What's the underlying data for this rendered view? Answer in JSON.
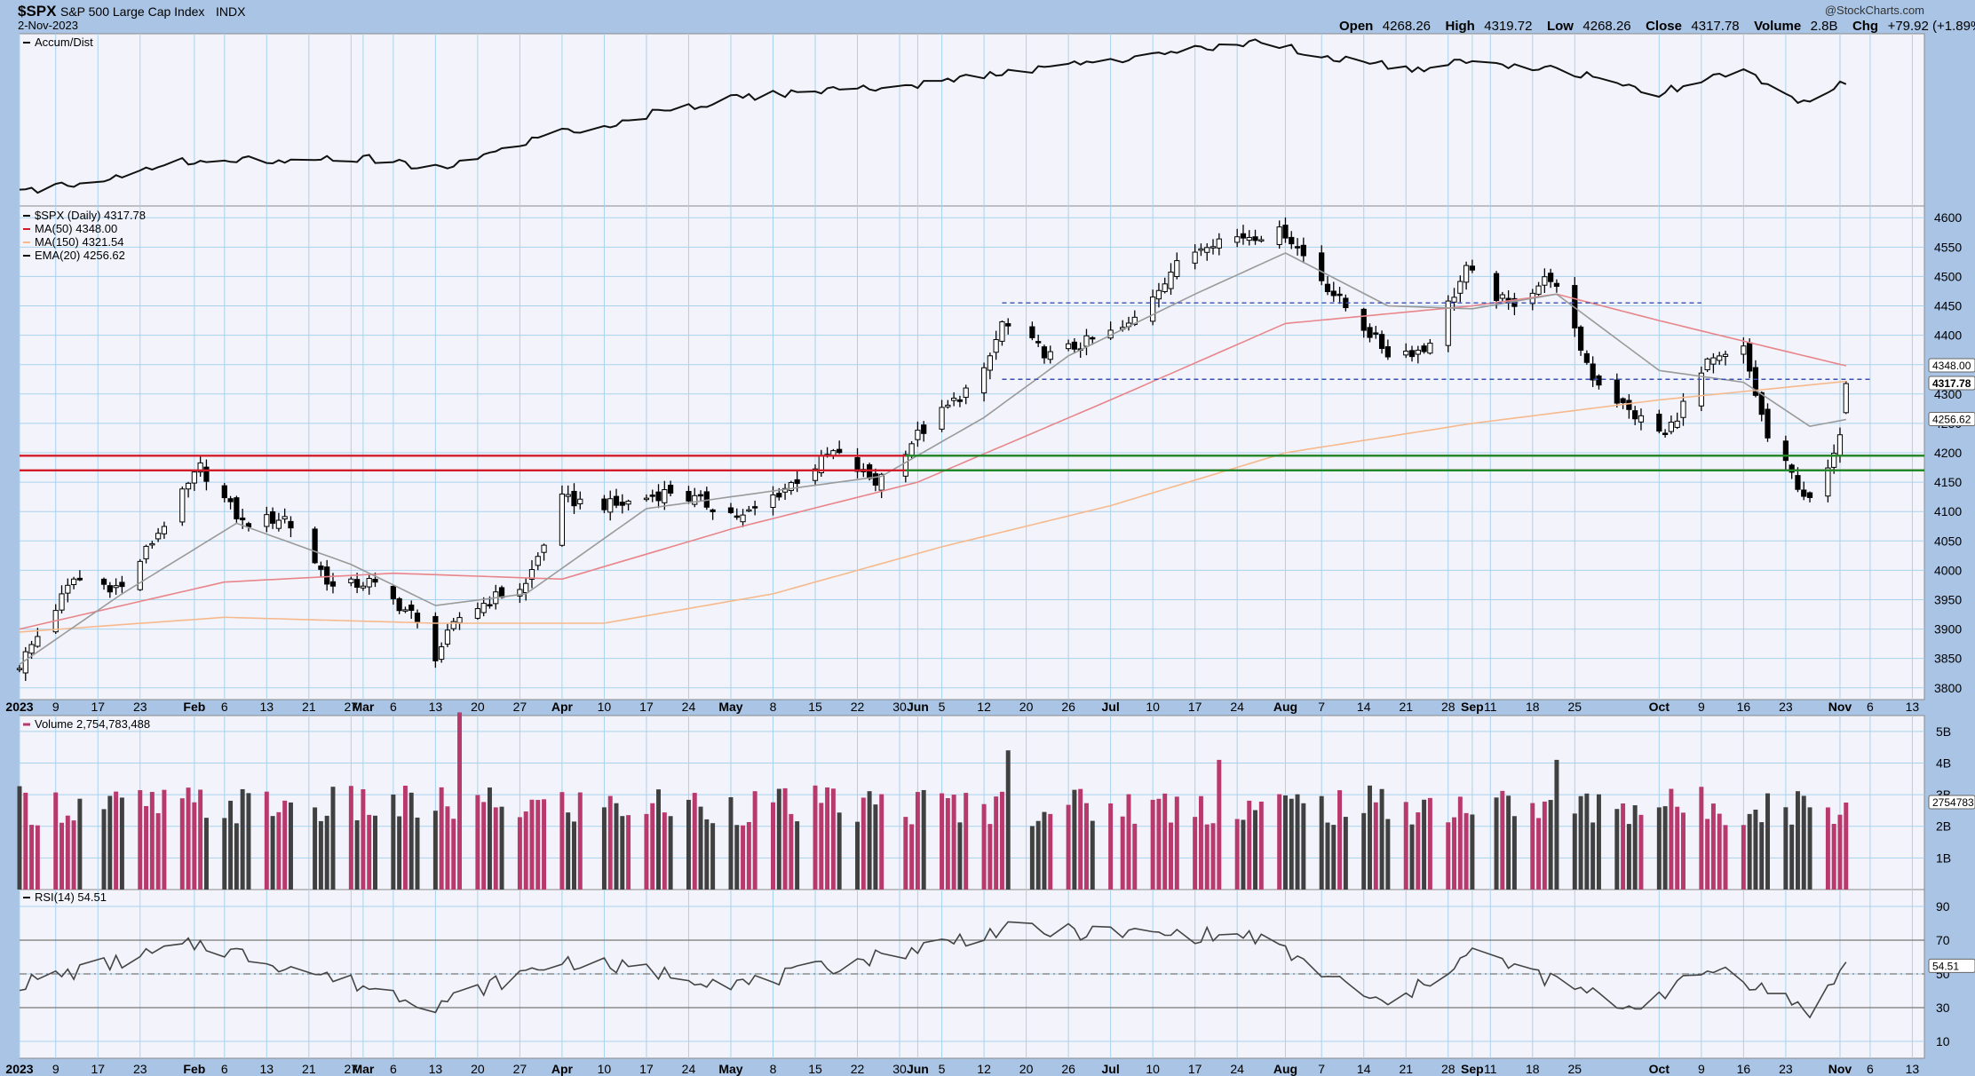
{
  "header": {
    "symbol": "$SPX",
    "name": "S&P 500 Large Cap Index",
    "exchange": "INDX",
    "date": "2-Nov-2023",
    "open_label": "Open",
    "open": "4268.26",
    "high_label": "High",
    "high": "4319.72",
    "low_label": "Low",
    "low": "4268.26",
    "close_label": "Close",
    "close": "4317.78",
    "volume_label": "Volume",
    "volume": "2.8B",
    "chg_label": "Chg",
    "chg": "+79.92 (+1.89%)",
    "chg_arrow": "▲",
    "credit": "@StockCharts.com"
  },
  "colors": {
    "up": "#ffffff",
    "down": "#000000",
    "ma50": "#e8858a",
    "ma150": "#f6b98d",
    "ema20": "#9a9a9a",
    "red_line": "#d21c2a",
    "green_line": "#1f8a2a",
    "dash_line": "#3a4fb0",
    "vol_up": "#b83a6c",
    "vol_down": "#404040",
    "rsi": "#444444"
  },
  "panels": {
    "accum": {
      "label": "Accum/Dist"
    },
    "price": {
      "legend": [
        "$SPX (Daily) 4317.78",
        "MA(50) 4348.00",
        "MA(150) 4321.54",
        "EMA(20) 4256.62"
      ],
      "y_ticks": [
        "4600",
        "4550",
        "4500",
        "4450",
        "4400",
        "4350",
        "4300",
        "4250",
        "4200",
        "4150",
        "4100",
        "4050",
        "4000",
        "3950",
        "3900",
        "3850",
        "3800"
      ],
      "value_tags": [
        "4348.00",
        "4317.78",
        "4256.62"
      ]
    },
    "volume": {
      "legend": "Volume 2,754,783,488",
      "y_ticks": [
        "5B",
        "4B",
        "3B",
        "2B",
        "1B"
      ],
      "value_tag": "2754783"
    },
    "rsi": {
      "legend": "RSI(14) 54.51",
      "y_ticks": [
        "90",
        "70",
        "50",
        "30",
        "10"
      ],
      "value_tag": "54.51"
    }
  },
  "x_axis": [
    {
      "t": "2023",
      "m": true
    },
    {
      "t": "9"
    },
    {
      "t": "17"
    },
    {
      "t": "23"
    },
    {
      "t": "Feb",
      "m": true
    },
    {
      "t": "6"
    },
    {
      "t": "13"
    },
    {
      "t": "21"
    },
    {
      "t": "27"
    },
    {
      "t": "Mar",
      "m": true
    },
    {
      "t": "6"
    },
    {
      "t": "13"
    },
    {
      "t": "20"
    },
    {
      "t": "27"
    },
    {
      "t": "Apr",
      "m": true
    },
    {
      "t": "10"
    },
    {
      "t": "17"
    },
    {
      "t": "24"
    },
    {
      "t": "May",
      "m": true
    },
    {
      "t": "8"
    },
    {
      "t": "15"
    },
    {
      "t": "22"
    },
    {
      "t": "30"
    },
    {
      "t": "Jun",
      "m": true
    },
    {
      "t": "5"
    },
    {
      "t": "12"
    },
    {
      "t": "20"
    },
    {
      "t": "26"
    },
    {
      "t": "Jul",
      "m": true
    },
    {
      "t": "10"
    },
    {
      "t": "17"
    },
    {
      "t": "24"
    },
    {
      "t": "Aug",
      "m": true
    },
    {
      "t": "7"
    },
    {
      "t": "14"
    },
    {
      "t": "21"
    },
    {
      "t": "28"
    },
    {
      "t": "Sep",
      "m": true
    },
    {
      "t": "11"
    },
    {
      "t": "18"
    },
    {
      "t": "25"
    },
    {
      "t": "Oct",
      "m": true
    },
    {
      "t": "9"
    },
    {
      "t": "16"
    },
    {
      "t": "23"
    },
    {
      "t": "Nov",
      "m": true
    },
    {
      "t": "6"
    },
    {
      "t": "13"
    }
  ],
  "chart_data": {
    "type": "line",
    "title": "$SPX S&P 500 Large Cap Index INDX",
    "xlabel": "",
    "ylabel": "",
    "x_range": [
      "2023-01-03",
      "2023-11-15"
    ],
    "ylim": [
      3780,
      4620
    ],
    "series": [
      {
        "name": "$SPX (Daily) 4317.78",
        "style": "candlestick",
        "points": [
          [
            "2023-01-03",
            3840
          ],
          [
            "2023-01-12",
            3985
          ],
          [
            "2023-01-20",
            3970
          ],
          [
            "2023-02-02",
            4175
          ],
          [
            "2023-02-09",
            4080
          ],
          [
            "2023-02-16",
            4090
          ],
          [
            "2023-02-24",
            3970
          ],
          [
            "2023-03-02",
            3980
          ],
          [
            "2023-03-09",
            3925
          ],
          [
            "2023-03-13",
            3855
          ],
          [
            "2023-03-17",
            3920
          ],
          [
            "2023-03-22",
            3950
          ],
          [
            "2023-03-28",
            3975
          ],
          [
            "2023-04-03",
            4120
          ],
          [
            "2023-04-12",
            4110
          ],
          [
            "2023-04-21",
            4135
          ],
          [
            "2023-05-03",
            4090
          ],
          [
            "2023-05-10",
            4140
          ],
          [
            "2023-05-18",
            4200
          ],
          [
            "2023-05-25",
            4150
          ],
          [
            "2023-06-01",
            4230
          ],
          [
            "2023-06-12",
            4335
          ],
          [
            "2023-06-15",
            4420
          ],
          [
            "2023-06-23",
            4365
          ],
          [
            "2023-07-06",
            4415
          ],
          [
            "2023-07-13",
            4510
          ],
          [
            "2023-07-19",
            4560
          ],
          [
            "2023-07-26",
            4570
          ],
          [
            "2023-08-01",
            4575
          ],
          [
            "2023-08-09",
            4470
          ],
          [
            "2023-08-18",
            4370
          ],
          [
            "2023-08-24",
            4375
          ],
          [
            "2023-08-31",
            4510
          ],
          [
            "2023-09-07",
            4450
          ],
          [
            "2023-09-14",
            4500
          ],
          [
            "2023-09-21",
            4330
          ],
          [
            "2023-09-27",
            4270
          ],
          [
            "2023-10-03",
            4230
          ],
          [
            "2023-10-10",
            4350
          ],
          [
            "2023-10-16",
            4375
          ],
          [
            "2023-10-20",
            4225
          ],
          [
            "2023-10-27",
            4115
          ],
          [
            "2023-10-31",
            4190
          ],
          [
            "2023-11-01",
            4240
          ],
          [
            "2023-11-02",
            4317.78
          ]
        ]
      },
      {
        "name": "MA(50) 4348.00",
        "points": [
          [
            "2023-01-03",
            3900
          ],
          [
            "2023-02-06",
            3980
          ],
          [
            "2023-03-06",
            3995
          ],
          [
            "2023-04-03",
            3985
          ],
          [
            "2023-05-01",
            4070
          ],
          [
            "2023-06-01",
            4150
          ],
          [
            "2023-07-03",
            4290
          ],
          [
            "2023-08-01",
            4420
          ],
          [
            "2023-09-01",
            4450
          ],
          [
            "2023-09-15",
            4470
          ],
          [
            "2023-10-02",
            4425
          ],
          [
            "2023-10-16",
            4390
          ],
          [
            "2023-11-02",
            4348
          ]
        ]
      },
      {
        "name": "MA(150) 4321.54",
        "points": [
          [
            "2023-01-03",
            3895
          ],
          [
            "2023-02-06",
            3920
          ],
          [
            "2023-03-13",
            3910
          ],
          [
            "2023-04-10",
            3910
          ],
          [
            "2023-05-08",
            3960
          ],
          [
            "2023-06-05",
            4040
          ],
          [
            "2023-07-03",
            4110
          ],
          [
            "2023-08-01",
            4200
          ],
          [
            "2023-09-01",
            4250
          ],
          [
            "2023-10-02",
            4290
          ],
          [
            "2023-11-02",
            4321.54
          ]
        ]
      },
      {
        "name": "EMA(20) 4256.62",
        "points": [
          [
            "2023-01-03",
            3840
          ],
          [
            "2023-01-20",
            3960
          ],
          [
            "2023-02-08",
            4080
          ],
          [
            "2023-02-27",
            4010
          ],
          [
            "2023-03-13",
            3940
          ],
          [
            "2023-03-28",
            3960
          ],
          [
            "2023-04-17",
            4105
          ],
          [
            "2023-05-08",
            4135
          ],
          [
            "2023-05-26",
            4160
          ],
          [
            "2023-06-12",
            4260
          ],
          [
            "2023-06-26",
            4365
          ],
          [
            "2023-07-17",
            4470
          ],
          [
            "2023-08-01",
            4540
          ],
          [
            "2023-08-18",
            4450
          ],
          [
            "2023-09-01",
            4445
          ],
          [
            "2023-09-15",
            4470
          ],
          [
            "2023-10-02",
            4340
          ],
          [
            "2023-10-16",
            4320
          ],
          [
            "2023-10-27",
            4245
          ],
          [
            "2023-11-02",
            4256.62
          ]
        ]
      }
    ],
    "reference_lines": [
      {
        "style": "solid",
        "color": "red",
        "y": 4195
      },
      {
        "style": "solid",
        "color": "red",
        "y": 4170
      },
      {
        "style": "solid",
        "color": "green",
        "y": 4195,
        "from": "2023-05-30"
      },
      {
        "style": "solid",
        "color": "green",
        "y": 4170,
        "from": "2023-05-30"
      },
      {
        "style": "dashed",
        "y": 4455,
        "from": "2023-06-15",
        "to": "2023-10-09"
      },
      {
        "style": "dashed",
        "y": 4325,
        "from": "2023-06-15",
        "to": "2023-11-06"
      }
    ],
    "volume": {
      "name": "Volume 2,754,783,488",
      "ylim_billions": [
        0,
        5.5
      ],
      "last": 2.75,
      "spikes": [
        [
          "2023-03-17",
          5.6
        ],
        [
          "2023-06-16",
          4.4
        ],
        [
          "2023-07-21",
          4.1
        ],
        [
          "2023-09-15",
          4.1
        ]
      ]
    },
    "rsi": {
      "name": "RSI(14) 54.51",
      "ylim": [
        0,
        100
      ],
      "lines": [
        70,
        50,
        30
      ],
      "last": 54.51
    }
  }
}
